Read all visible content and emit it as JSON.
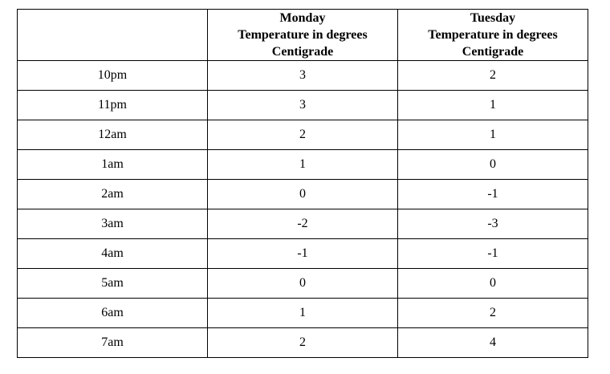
{
  "table": {
    "header": {
      "corner": "",
      "monday": {
        "day": "Monday",
        "line2": "Temperature in degrees",
        "line3": "Centigrade"
      },
      "tuesday": {
        "day": "Tuesday",
        "line2": "Temperature in degrees",
        "line3": "Centigrade"
      }
    },
    "rows": [
      {
        "time": "10pm",
        "monday": "3",
        "tuesday": "2"
      },
      {
        "time": "11pm",
        "monday": "3",
        "tuesday": "1"
      },
      {
        "time": "12am",
        "monday": "2",
        "tuesday": "1"
      },
      {
        "time": "1am",
        "monday": "1",
        "tuesday": "0"
      },
      {
        "time": "2am",
        "monday": "0",
        "tuesday": "-1"
      },
      {
        "time": "3am",
        "monday": "-2",
        "tuesday": "-3"
      },
      {
        "time": "4am",
        "monday": "-1",
        "tuesday": "-1"
      },
      {
        "time": "5am",
        "monday": "0",
        "tuesday": "0"
      },
      {
        "time": "6am",
        "monday": "1",
        "tuesday": "2"
      },
      {
        "time": "7am",
        "monday": "2",
        "tuesday": "4"
      }
    ]
  }
}
